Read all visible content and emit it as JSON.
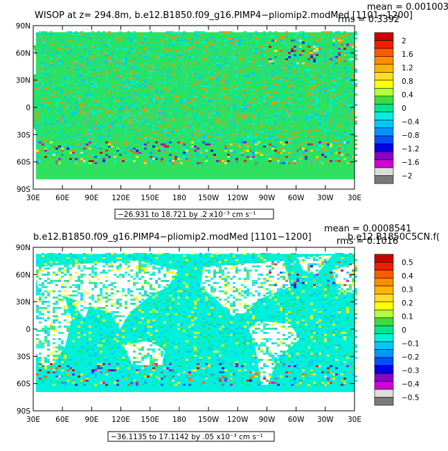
{
  "chart_data": [
    {
      "type": "heatmap",
      "title": "WISOP at z= 294.8m, b.e12.B1850.f09_g16.PIMP4−pliomip2.modMed [1101−1200]",
      "stats": {
        "mean": "mean = 0.001003",
        "rms": "rms = 0.3392"
      },
      "range_label": "−26.931 to 18.721 by .2 x10⁻³ cm s⁻¹",
      "xticks": [
        "30E",
        "60E",
        "90E",
        "120E",
        "150E",
        "180",
        "150W",
        "120W",
        "90W",
        "60W",
        "30W",
        "30E"
      ],
      "yticks": [
        "90N",
        "60N",
        "30N",
        "0",
        "30S",
        "60S",
        "90S"
      ],
      "colorbar": {
        "labels": [
          "2",
          "1.6",
          "1.2",
          "0.8",
          "0.4",
          "0",
          "−0.4",
          "−0.8",
          "−1.2",
          "−1.6",
          "−2"
        ],
        "colors": [
          "#c80000",
          "#f01e00",
          "#ff5a00",
          "#ff8c00",
          "#ffb400",
          "#ffdc28",
          "#ffff00",
          "#b4ff3c",
          "#3cdc3c",
          "#00e68c",
          "#00f0dc",
          "#00c8ff",
          "#0096ff",
          "#0050ff",
          "#0000e6",
          "#8c00c8",
          "#d200d2",
          "#dcdcdc",
          "#7a7a7a"
        ]
      },
      "ocean_fill": "#2fe060",
      "land_fill": "#2fe060",
      "noise_palette": [
        "#00e6a0",
        "#00f0dc",
        "#2fe060",
        "#00e6a0",
        "#00c8ff",
        "#ff8c00"
      ]
    },
    {
      "type": "heatmap",
      "title": "b.e12.B1850.f09_g16.PIMP4−pliomip2.modMed [1101−1200]",
      "title_right": "b.e12.B1850C5CN.f(",
      "stats": {
        "mean": "mean = 0.0008541",
        "rms": "rms = 0.1016"
      },
      "range_label": "−36.1135 to 17.1142 by .05 x10⁻³ cm s⁻¹",
      "xticks": [
        "30E",
        "60E",
        "90E",
        "120E",
        "150E",
        "180",
        "150W",
        "120W",
        "90W",
        "60W",
        "30W",
        "30E"
      ],
      "yticks": [
        "90N",
        "60N",
        "30N",
        "0",
        "30S",
        "60S",
        "90S"
      ],
      "colorbar": {
        "labels": [
          "0.5",
          "0.4",
          "0.3",
          "0.2",
          "0.1",
          "0",
          "−0.1",
          "−0.2",
          "−0.3",
          "−0.4",
          "−0.5"
        ],
        "colors": [
          "#c80000",
          "#f01e00",
          "#ff5a00",
          "#ff8c00",
          "#ffb400",
          "#ffdc28",
          "#ffff00",
          "#b4ff3c",
          "#3cdc3c",
          "#00e68c",
          "#00f0dc",
          "#00c8ff",
          "#0096ff",
          "#0050ff",
          "#0000e6",
          "#8c00c8",
          "#d200d2",
          "#dcdcdc",
          "#7a7a7a"
        ]
      },
      "ocean_fill": "#00f0dc",
      "land_fill": "#ffffff",
      "noise_palette": [
        "#2fe060",
        "#00e6a0",
        "#00f0dc",
        "#00c8ff",
        "#00f0dc",
        "#ffff00"
      ]
    }
  ]
}
